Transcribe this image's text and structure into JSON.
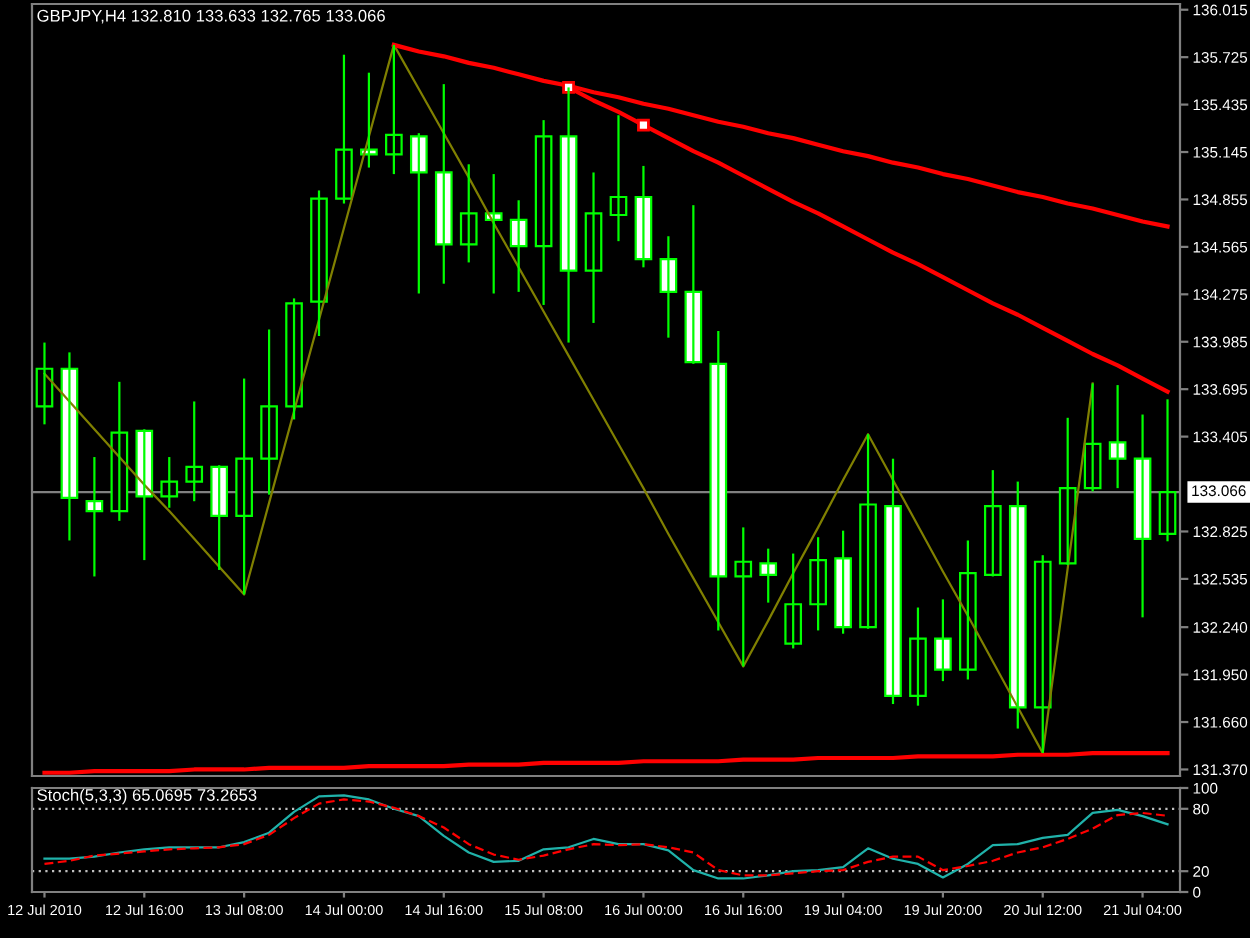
{
  "chart_data": [
    {
      "type": "candlestick",
      "title": "GBPJPY,H4 132.810 133.633 132.765 133.066",
      "color": "#00ff00",
      "categories": [
        null,
        null,
        null,
        null,
        null,
        null,
        null,
        null,
        null,
        null,
        null,
        null,
        null,
        null,
        null,
        null,
        null,
        null,
        null,
        null,
        null,
        null,
        null,
        null,
        null,
        null,
        null,
        null,
        null,
        null,
        null,
        null,
        null,
        null,
        null,
        null,
        null,
        null,
        null,
        null,
        null,
        null,
        null,
        null,
        null,
        null
      ],
      "ohlc": [
        [
          133.59,
          133.98,
          133.48,
          133.82
        ],
        [
          133.82,
          133.92,
          132.77,
          133.03
        ],
        [
          133.01,
          133.28,
          132.55,
          132.95
        ],
        [
          132.95,
          133.74,
          132.89,
          133.43
        ],
        [
          133.44,
          133.45,
          132.65,
          133.04
        ],
        [
          133.04,
          133.28,
          132.97,
          133.13
        ],
        [
          133.13,
          133.62,
          133.01,
          133.22
        ],
        [
          133.22,
          133.23,
          132.59,
          132.92
        ],
        [
          132.92,
          133.76,
          132.44,
          133.27
        ],
        [
          133.27,
          134.06,
          133.05,
          133.59
        ],
        [
          133.59,
          134.25,
          133.51,
          134.22
        ],
        [
          134.23,
          134.91,
          134.02,
          134.86
        ],
        [
          134.86,
          135.74,
          134.83,
          135.16
        ],
        [
          135.16,
          135.63,
          135.05,
          135.13
        ],
        [
          135.13,
          135.8,
          135.01,
          135.25
        ],
        [
          135.24,
          135.26,
          134.28,
          135.02
        ],
        [
          135.02,
          135.56,
          134.34,
          134.58
        ],
        [
          134.58,
          135.07,
          134.47,
          134.77
        ],
        [
          134.77,
          135.01,
          134.28,
          134.73
        ],
        [
          134.73,
          134.85,
          134.29,
          134.57
        ],
        [
          134.57,
          135.34,
          134.21,
          135.24
        ],
        [
          135.24,
          135.54,
          133.98,
          134.42
        ],
        [
          134.42,
          135.02,
          134.1,
          134.77
        ],
        [
          134.76,
          135.37,
          134.6,
          134.87
        ],
        [
          134.87,
          135.06,
          134.44,
          134.49
        ],
        [
          134.49,
          134.63,
          134.01,
          134.29
        ],
        [
          134.29,
          134.82,
          133.85,
          133.86
        ],
        [
          133.85,
          134.05,
          132.22,
          132.55
        ],
        [
          132.55,
          132.85,
          132.0,
          132.64
        ],
        [
          132.63,
          132.72,
          132.39,
          132.56
        ],
        [
          132.14,
          132.69,
          132.11,
          132.38
        ],
        [
          132.38,
          132.79,
          132.22,
          132.65
        ],
        [
          132.66,
          132.83,
          132.2,
          132.24
        ],
        [
          132.24,
          133.42,
          132.23,
          132.99
        ],
        [
          132.98,
          133.27,
          131.77,
          131.82
        ],
        [
          131.82,
          132.36,
          131.76,
          132.17
        ],
        [
          132.17,
          132.41,
          131.91,
          131.98
        ],
        [
          131.98,
          132.77,
          131.92,
          132.57
        ],
        [
          132.56,
          133.2,
          132.55,
          132.98
        ],
        [
          132.98,
          133.13,
          131.62,
          131.75
        ],
        [
          131.75,
          132.68,
          131.47,
          132.64
        ],
        [
          132.63,
          133.52,
          132.62,
          133.09
        ],
        [
          133.09,
          133.73,
          133.07,
          133.36
        ],
        [
          133.37,
          133.72,
          133.09,
          133.27
        ],
        [
          133.27,
          133.54,
          132.3,
          132.78
        ],
        [
          132.81,
          133.633,
          132.765,
          133.066
        ]
      ],
      "colors": [
        "#000000",
        "#ffffff",
        "#ffffff",
        "#000000",
        "#ffffff",
        "#000000",
        "#000000",
        "#ffffff",
        "#000000",
        "#000000",
        "#000000",
        "#000000",
        "#000000",
        "#ffffff",
        "#000000",
        "#ffffff",
        "#ffffff",
        "#000000",
        "#ffffff",
        "#ffffff",
        "#000000",
        "#ffffff",
        "#000000",
        "#000000",
        "#ffffff",
        "#ffffff",
        "#ffffff",
        "#ffffff",
        "#000000",
        "#ffffff",
        "#000000",
        "#000000",
        "#ffffff",
        "#000000",
        "#ffffff",
        "#000000",
        "#ffffff",
        "#000000",
        "#000000",
        "#ffffff",
        "#000000",
        "#000000",
        "#000000",
        "#ffffff",
        "#ffffff",
        "#000000"
      ],
      "series": [
        {
          "type": "line",
          "color": "#808000",
          "values": [
            133.79,
            133.62,
            133.45,
            133.28,
            133.11,
            132.95,
            132.78,
            132.61,
            132.44,
            133.0,
            133.56,
            134.12,
            134.68,
            135.24,
            135.8,
            135.53,
            135.26,
            134.99,
            134.71,
            134.44,
            134.17,
            133.9,
            133.63,
            133.36,
            133.09,
            132.81,
            132.54,
            132.27,
            132.0,
            132.28,
            132.57,
            132.85,
            133.14,
            133.42,
            133.14,
            132.86,
            132.58,
            132.31,
            132.03,
            131.75,
            131.47,
            132.6,
            133.73,
            null,
            null,
            null
          ]
        },
        {
          "type": "line",
          "color": "#ff0000",
          "values": [
            null,
            null,
            null,
            null,
            null,
            null,
            null,
            null,
            null,
            null,
            null,
            null,
            null,
            null,
            135.8,
            135.76,
            135.73,
            135.69,
            135.66,
            135.62,
            135.58,
            135.55,
            135.51,
            135.48,
            135.44,
            135.41,
            135.37,
            135.33,
            135.3,
            135.26,
            135.23,
            135.19,
            135.15,
            135.12,
            135.08,
            135.05,
            135.01,
            134.98,
            134.94,
            134.9,
            134.87,
            134.83,
            134.8,
            134.76,
            134.72,
            134.69
          ]
        },
        {
          "type": "line",
          "color": "#ff0000",
          "values": [
            null,
            null,
            null,
            null,
            null,
            null,
            null,
            null,
            null,
            null,
            null,
            null,
            null,
            null,
            null,
            null,
            null,
            null,
            null,
            null,
            null,
            135.54,
            135.46,
            135.39,
            135.31,
            135.23,
            135.15,
            135.08,
            135.0,
            134.92,
            134.84,
            134.77,
            134.69,
            134.61,
            134.53,
            134.46,
            134.38,
            134.3,
            134.22,
            134.15,
            134.07,
            133.99,
            133.91,
            133.84,
            133.76,
            133.68
          ]
        },
        {
          "type": "line",
          "color": "#ff0000",
          "values": [
            131.35,
            131.35,
            131.36,
            131.36,
            131.36,
            131.36,
            131.37,
            131.37,
            131.37,
            131.38,
            131.38,
            131.38,
            131.38,
            131.39,
            131.39,
            131.39,
            131.39,
            131.4,
            131.4,
            131.4,
            131.41,
            131.41,
            131.41,
            131.41,
            131.42,
            131.42,
            131.42,
            131.42,
            131.43,
            131.43,
            131.43,
            131.44,
            131.44,
            131.44,
            131.44,
            131.45,
            131.45,
            131.45,
            131.45,
            131.46,
            131.46,
            131.46,
            131.47,
            131.47,
            131.47,
            131.47
          ]
        }
      ],
      "ylim": [
        131.33,
        136.05
      ],
      "yticks": [
        136.015,
        135.725,
        135.435,
        135.145,
        134.855,
        134.565,
        134.275,
        133.985,
        133.695,
        133.405,
        132.825,
        132.535,
        {
          "value": 132.24,
          "label": "132.240"
        },
        {
          "value": 131.95,
          "label": "131.950"
        },
        {
          "value": 131.66,
          "label": "131.660"
        },
        {
          "value": 131.37,
          "label": "131.370"
        }
      ],
      "ref_lines": [
        {
          "axis": "y",
          "value": 133.066,
          "label": "133.066",
          "color": "#808080"
        }
      ],
      "tick_labels": "y"
    },
    {
      "type": "line",
      "title": "Stoch(5,3,3) 65.0695 73.2653",
      "categories": [
        "12 Jul 2010",
        null,
        null,
        null,
        "12 Jul 16:00",
        null,
        null,
        null,
        "13 Jul 08:00",
        null,
        null,
        null,
        "14 Jul 00:00",
        null,
        null,
        null,
        "14 Jul 16:00",
        null,
        null,
        null,
        "15 Jul 08:00",
        null,
        null,
        null,
        "16 Jul 00:00",
        null,
        null,
        null,
        "16 Jul 16:00",
        null,
        null,
        null,
        "19 Jul 04:00",
        null,
        null,
        null,
        "19 Jul 20:00",
        null,
        null,
        null,
        "20 Jul 12:00",
        null,
        null,
        null,
        "21 Jul 04:00",
        null
      ],
      "series": [
        {
          "color": "#20b2aa",
          "values": [
            32,
            32,
            34,
            38,
            41,
            43,
            43,
            43,
            48,
            57,
            77,
            92,
            93,
            89,
            80,
            73,
            54,
            38,
            29,
            30,
            41,
            43,
            51,
            46,
            46,
            40,
            21,
            13,
            13,
            16,
            20,
            21,
            24,
            42,
            32,
            27,
            14,
            27,
            45,
            46,
            52,
            55,
            76,
            79,
            73,
            65.0695
          ]
        },
        {
          "color": "#ff0000",
          "line_style": "dashed",
          "values": [
            27,
            30,
            35,
            37,
            39,
            41,
            42,
            43,
            46,
            55,
            71,
            85,
            89,
            87,
            81,
            73,
            62,
            46,
            36,
            31,
            35,
            41,
            46,
            45,
            46,
            43,
            38,
            21,
            16,
            16,
            18,
            20,
            21,
            29,
            34,
            34,
            21,
            25,
            30,
            38,
            43,
            51,
            61,
            74,
            76,
            73.2653
          ]
        }
      ],
      "ylim": [
        0,
        100
      ],
      "yticks": [
        0,
        20,
        80,
        100
      ],
      "ref_lines": [
        {
          "axis": "y",
          "value": 20,
          "color": "#c0c0c0",
          "line_style": "dotted"
        },
        {
          "axis": "y",
          "value": 80,
          "color": "#c0c0c0",
          "line_style": "dotted"
        }
      ]
    }
  ]
}
